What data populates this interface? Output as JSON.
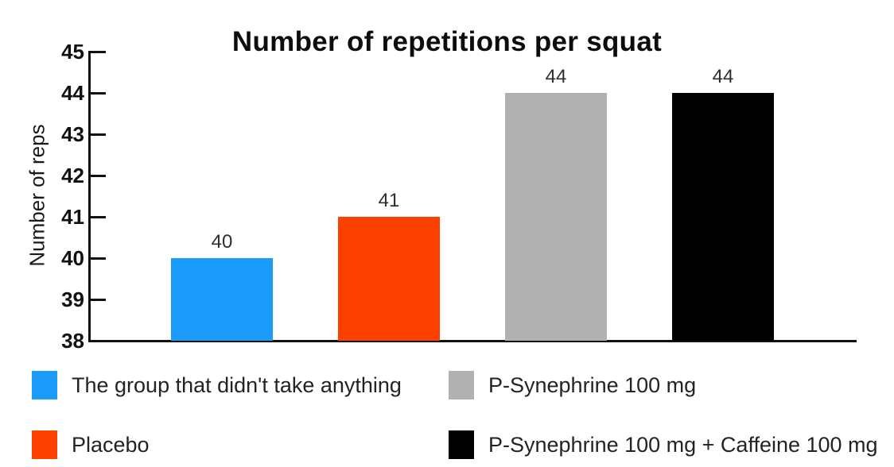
{
  "chart_data": {
    "type": "bar",
    "title": "Number of repetitions per squat",
    "xlabel": "",
    "ylabel": "Number of reps",
    "ylim": [
      38,
      45
    ],
    "yticks": [
      45,
      44,
      43,
      42,
      41,
      40,
      39,
      38
    ],
    "grid": false,
    "legend_position": "bottom",
    "categories": [
      "The group that didn't take anything",
      "Placebo",
      "P-Synephrine 100 mg",
      "P-Synephrine 100 mg + Caffeine 100 mg"
    ],
    "values": [
      40,
      41,
      44,
      44
    ],
    "colors": [
      "#1B9CFA",
      "#FB4000",
      "#B1B1B1",
      "#000000"
    ]
  },
  "legend": {
    "items": [
      {
        "label": "The group that didn't take anything",
        "color": "#1B9CFA"
      },
      {
        "label": "Placebo",
        "color": "#FB4000"
      },
      {
        "label": "P-Synephrine 100 mg",
        "color": "#B1B1B1"
      },
      {
        "label": "P-Synephrine 100 mg + Caffeine 100 mg",
        "color": "#000000"
      }
    ]
  }
}
